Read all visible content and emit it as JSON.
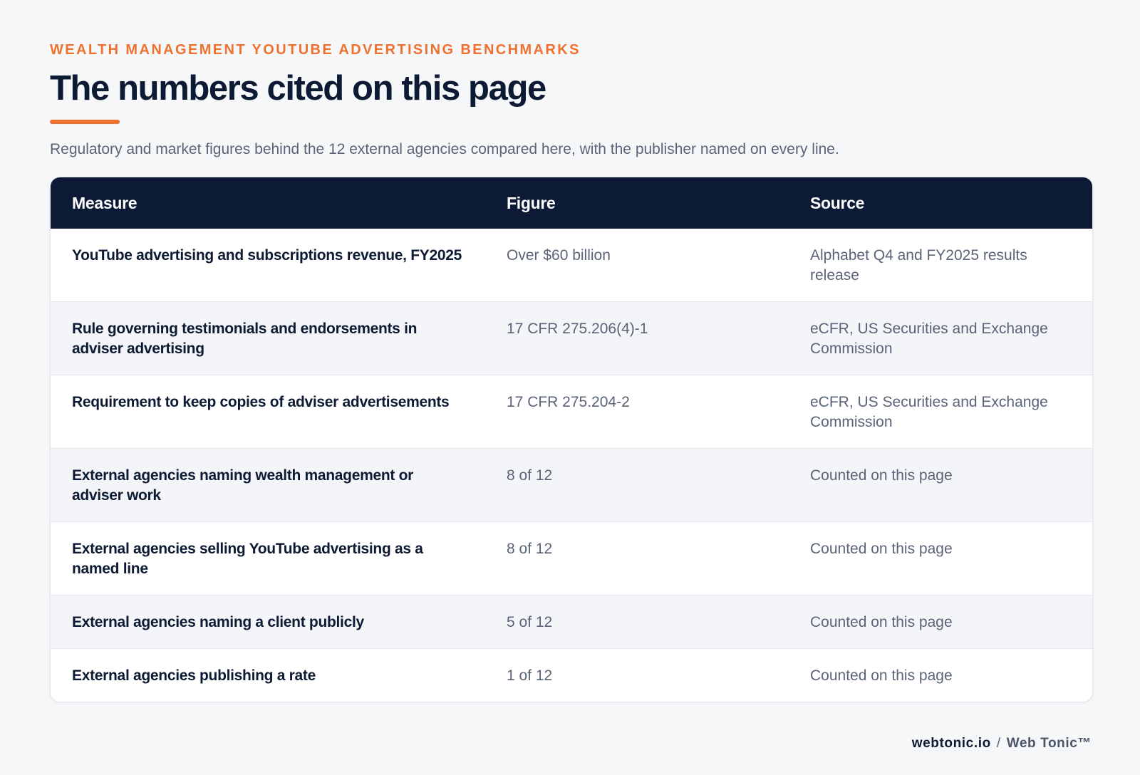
{
  "header": {
    "eyebrow": "WEALTH MANAGEMENT YOUTUBE ADVERTISING BENCHMARKS",
    "title": "The numbers cited on this page",
    "subtitle": "Regulatory and market figures behind the 12 external agencies compared here, with the publisher named on every line."
  },
  "table": {
    "columns": [
      "Measure",
      "Figure",
      "Source"
    ],
    "rows": [
      {
        "measure": "YouTube advertising and subscriptions revenue, FY2025",
        "figure": "Over $60 billion",
        "source": "Alphabet Q4 and FY2025 results release"
      },
      {
        "measure": "Rule governing testimonials and endorsements in adviser advertising",
        "figure": "17 CFR 275.206(4)-1",
        "source": "eCFR, US Securities and Exchange Commission"
      },
      {
        "measure": "Requirement to keep copies of adviser advertisements",
        "figure": "17 CFR 275.204-2",
        "source": "eCFR, US Securities and Exchange Commission"
      },
      {
        "measure": "External agencies naming wealth management or adviser work",
        "figure": "8 of 12",
        "source": "Counted on this page"
      },
      {
        "measure": "External agencies selling YouTube advertising as a named line",
        "figure": "8 of 12",
        "source": "Counted on this page"
      },
      {
        "measure": "External agencies naming a client publicly",
        "figure": "5 of 12",
        "source": "Counted on this page"
      },
      {
        "measure": "External agencies publishing a rate",
        "figure": "1 of 12",
        "source": "Counted on this page"
      }
    ]
  },
  "footer": {
    "domain": "webtonic.io",
    "separator": "/",
    "brand": "Web Tonic™"
  }
}
